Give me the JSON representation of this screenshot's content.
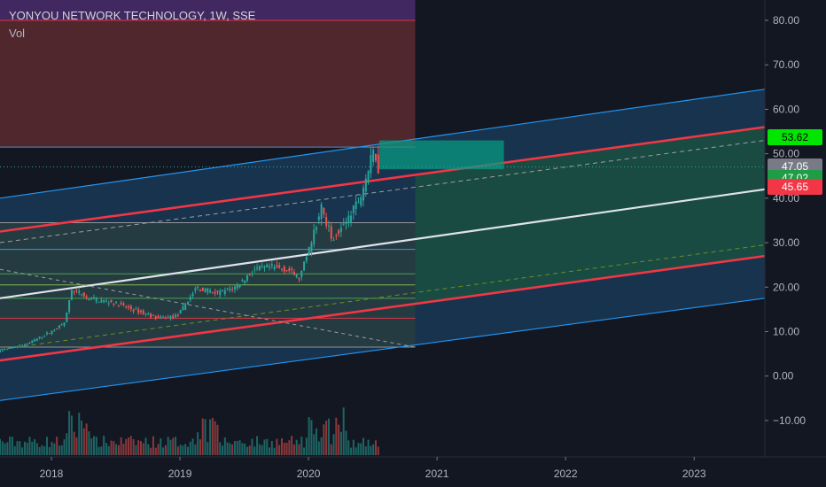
{
  "header": {
    "title": "YONYOU NETWORK TECHNOLOGY, 1W, SSE",
    "indicator": "Vol"
  },
  "colors": {
    "background": "#131722",
    "up": "#26a69a",
    "down": "#ef5350",
    "channel_blue": "#2196f3",
    "channel_red": "#f23645",
    "midline": "#e0e3eb",
    "target_green": "#089981",
    "zone_red": "#5b2a2e",
    "zone_purple": "#4a2c6b"
  },
  "badges": [
    {
      "label": "53.62",
      "value": 53.62,
      "bg": "#00e600",
      "fg": "#000000"
    },
    {
      "label": "47.05",
      "value": 47.05,
      "bg": "#787b86",
      "fg": "#ffffff"
    },
    {
      "label": "47.02",
      "value": 47.02,
      "bg": "#1f9c46",
      "fg": "#ffffff"
    },
    {
      "label": "45.65",
      "value": 45.65,
      "bg": "#f23645",
      "fg": "#ffffff"
    }
  ],
  "chart_data": {
    "type": "candlestick",
    "title": "YONYOU NETWORK TECHNOLOGY, 1W, SSE",
    "x_ticks": [
      "2018",
      "2019",
      "2020",
      "2021",
      "2022",
      "2023"
    ],
    "y_ticks": [
      "80.00",
      "70.00",
      "60.00",
      "50.00",
      "40.00",
      "30.00",
      "20.00",
      "10.00",
      "0.00",
      "−10.00"
    ],
    "ylim": [
      -17,
      84
    ],
    "xlim": [
      2017.6,
      2023.55
    ],
    "grid": false,
    "last_price": 47.05,
    "price_path": [
      [
        2017.6,
        5.5
      ],
      [
        2017.85,
        7.5
      ],
      [
        2018.05,
        10.5
      ],
      [
        2018.12,
        12.0
      ],
      [
        2018.18,
        19.5
      ],
      [
        2018.3,
        17.5
      ],
      [
        2018.5,
        16.5
      ],
      [
        2018.7,
        14.5
      ],
      [
        2018.85,
        13.0
      ],
      [
        2019.0,
        13.5
      ],
      [
        2019.15,
        20.0
      ],
      [
        2019.3,
        18.5
      ],
      [
        2019.45,
        20.0
      ],
      [
        2019.6,
        24.0
      ],
      [
        2019.72,
        24.5
      ],
      [
        2019.85,
        24.0
      ],
      [
        2019.95,
        22.0
      ],
      [
        2020.05,
        31.0
      ],
      [
        2020.12,
        38.0
      ],
      [
        2020.2,
        31.0
      ],
      [
        2020.3,
        34.0
      ],
      [
        2020.42,
        40.0
      ],
      [
        2020.5,
        48.0
      ],
      [
        2020.53,
        51.0
      ],
      [
        2020.56,
        47.0
      ]
    ],
    "channel_lines": [
      {
        "name": "upper-blue",
        "x": [
          2017.6,
          2023.55
        ],
        "y": [
          40.0,
          64.5
        ]
      },
      {
        "name": "upper-red",
        "x": [
          2017.6,
          2023.55
        ],
        "y": [
          32.5,
          56.0
        ]
      },
      {
        "name": "upper-dashed",
        "x": [
          2017.6,
          2023.55
        ],
        "y": [
          30.0,
          53.0
        ]
      },
      {
        "name": "midline",
        "x": [
          2017.6,
          2023.55
        ],
        "y": [
          17.5,
          42.0
        ]
      },
      {
        "name": "lower-dashed",
        "x": [
          2017.6,
          2023.55
        ],
        "y": [
          6.0,
          29.5
        ]
      },
      {
        "name": "lower-red",
        "x": [
          2017.6,
          2023.55
        ],
        "y": [
          3.5,
          27.0
        ]
      },
      {
        "name": "lower-blue",
        "x": [
          2017.6,
          2023.55
        ],
        "y": [
          -5.5,
          17.5
        ]
      }
    ],
    "fib_levels": [
      80.0,
      51.5,
      34.5,
      28.5,
      23.0,
      20.5,
      17.5,
      13.0,
      6.5
    ],
    "zones": [
      {
        "name": "red-zone",
        "x": [
          2017.6,
          2020.83
        ],
        "y": [
          51.5,
          80.0
        ]
      },
      {
        "name": "target-box",
        "x": [
          2020.55,
          2021.52
        ],
        "y": [
          46.5,
          53.0
        ]
      }
    ],
    "volume_profile": "weekly volume bars along the bottom, taller around early 2018, mid 2019 and early 2020"
  }
}
